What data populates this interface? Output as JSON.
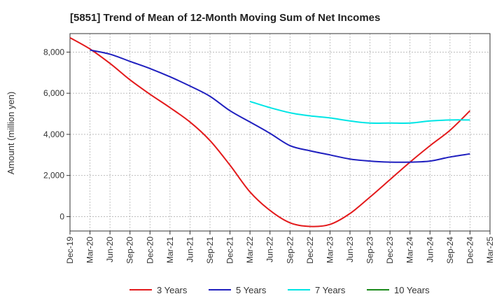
{
  "chart_data": {
    "type": "line",
    "title": "[5851]  Trend of Mean of 12-Month Moving Sum of Net Incomes",
    "xlabel": "",
    "ylabel": "Amount (million yen)",
    "ylim": [
      -700,
      8900
    ],
    "yticks": [
      0,
      2000,
      4000,
      6000,
      8000
    ],
    "ytick_labels": [
      "0",
      "2,000",
      "4,000",
      "6,000",
      "8,000"
    ],
    "xticks": [
      "Dec-19",
      "Mar-20",
      "Jun-20",
      "Sep-20",
      "Dec-20",
      "Mar-21",
      "Jun-21",
      "Sep-21",
      "Dec-21",
      "Mar-22",
      "Jun-22",
      "Sep-22",
      "Dec-22",
      "Mar-23",
      "Jun-23",
      "Sep-23",
      "Dec-23",
      "Mar-24",
      "Jun-24",
      "Sep-24",
      "Dec-24",
      "Mar-25"
    ],
    "grid": true,
    "legend_position": "bottom",
    "series": [
      {
        "name": "3 Years",
        "color": "#e31a1c",
        "x": [
          "Dec-19",
          "Mar-20",
          "Jun-20",
          "Sep-20",
          "Dec-20",
          "Mar-21",
          "Jun-21",
          "Sep-21",
          "Dec-21",
          "Mar-22",
          "Jun-22",
          "Sep-22",
          "Dec-22",
          "Mar-23",
          "Jun-23",
          "Sep-23",
          "Dec-23",
          "Mar-24",
          "Jun-24",
          "Sep-24",
          "Dec-24"
        ],
        "values": [
          8700,
          8150,
          7450,
          6650,
          5950,
          5300,
          4600,
          3700,
          2500,
          1200,
          300,
          -300,
          -480,
          -380,
          150,
          950,
          1800,
          2650,
          3450,
          4200,
          5150
        ]
      },
      {
        "name": "5 Years",
        "color": "#1f1fbf",
        "x": [
          "Mar-20",
          "Jun-20",
          "Sep-20",
          "Dec-20",
          "Mar-21",
          "Jun-21",
          "Sep-21",
          "Dec-21",
          "Mar-22",
          "Jun-22",
          "Sep-22",
          "Dec-22",
          "Mar-23",
          "Jun-23",
          "Sep-23",
          "Dec-23",
          "Mar-24",
          "Jun-24",
          "Sep-24",
          "Dec-24"
        ],
        "values": [
          8100,
          7900,
          7550,
          7200,
          6800,
          6350,
          5850,
          5150,
          4600,
          4050,
          3450,
          3200,
          3000,
          2800,
          2700,
          2650,
          2650,
          2700,
          2900,
          3050
        ]
      },
      {
        "name": "7 Years",
        "color": "#00e5e5",
        "x": [
          "Mar-22",
          "Jun-22",
          "Sep-22",
          "Dec-22",
          "Mar-23",
          "Jun-23",
          "Sep-23",
          "Dec-23",
          "Mar-24",
          "Jun-24",
          "Sep-24",
          "Dec-24"
        ],
        "values": [
          5600,
          5300,
          5050,
          4900,
          4800,
          4650,
          4550,
          4550,
          4550,
          4650,
          4700,
          4700
        ]
      },
      {
        "name": "10 Years",
        "color": "#1a8a1a",
        "x": [],
        "values": []
      }
    ]
  }
}
